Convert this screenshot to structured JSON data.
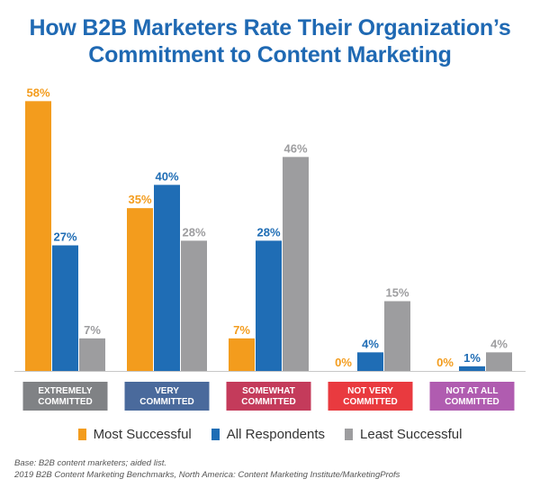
{
  "title_lines": [
    "How B2B Marketers Rate Their Organization’s",
    "Commitment to Content Marketing"
  ],
  "colors": {
    "title": "#1f69b3",
    "most_successful": "#f39c1d",
    "all_respondents": "#1f6db5",
    "least_successful": "#9d9d9f"
  },
  "chart_data": {
    "type": "bar",
    "categories": [
      "EXTREMELY COMMITTED",
      "VERY COMMITTED",
      "SOMEWHAT COMMITTED",
      "NOT VERY COMMITTED",
      "NOT AT ALL COMMITTED"
    ],
    "category_label_lines": [
      [
        "EXTREMELY",
        "COMMITTED"
      ],
      [
        "VERY",
        "COMMITTED"
      ],
      [
        "SOMEWHAT",
        "COMMITTED"
      ],
      [
        "NOT VERY",
        "COMMITTED"
      ],
      [
        "NOT AT ALL",
        "COMMITTED"
      ]
    ],
    "category_colors": [
      "#808285",
      "#4a6a9c",
      "#c43b5b",
      "#e93a3f",
      "#b05cb0"
    ],
    "series": [
      {
        "name": "Most Successful",
        "values": [
          58,
          35,
          7,
          0,
          0
        ],
        "color": "#f39c1d"
      },
      {
        "name": "All Respondents",
        "values": [
          27,
          40,
          28,
          4,
          1
        ],
        "color": "#1f6db5"
      },
      {
        "name": "Least Successful",
        "values": [
          7,
          28,
          46,
          15,
          4
        ],
        "color": "#9d9d9f"
      }
    ],
    "value_suffix": "%",
    "ylim": [
      0,
      60
    ],
    "grid": false,
    "legend_position": "bottom"
  },
  "footnotes": [
    "Base: B2B content marketers; aided list.",
    "2019 B2B Content Marketing Benchmarks, North America: Content Marketing Institute/MarketingProfs"
  ]
}
